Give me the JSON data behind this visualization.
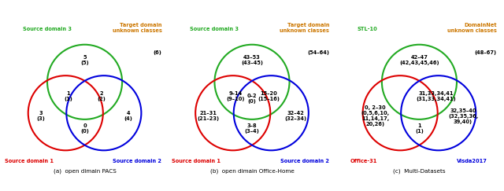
{
  "diagrams": [
    {
      "title": "(a)  open dimain PACS",
      "circle1_label": "Source domain 1",
      "circle1_color": "#dd0000",
      "circle2_label": "Source domain 2",
      "circle2_color": "#0000dd",
      "circle3_label": "Source domain 3",
      "circle3_color": "#22aa22",
      "target_label": "Target domain\nunknown classes",
      "target_color": "#cc7700",
      "target_value": "(6)",
      "regions": {
        "only1": "3\n(3)",
        "only2": "4\n(4)",
        "only3": "5\n(5)",
        "inter12": "0\n(0)",
        "inter13": "1\n(1)",
        "inter23": "2\n(2)",
        "inter123": ""
      }
    },
    {
      "title": "(b)  open dimain Office-Home",
      "circle1_label": "Source domain 1",
      "circle1_color": "#dd0000",
      "circle2_label": "Source domain 2",
      "circle2_color": "#0000dd",
      "circle3_label": "Source domain 3",
      "circle3_color": "#22aa22",
      "target_label": "Target domain\nunknown classes",
      "target_color": "#cc7700",
      "target_value": "(54–64)",
      "regions": {
        "only1": "21–31\n(21–23)",
        "only2": "32–42\n(32–34)",
        "only3": "43–53\n(43–45)",
        "inter12": "3–8\n(3–4)",
        "inter13": "9–14\n(9–10)",
        "inter23": "15–20\n(15–16)",
        "inter123": "0–2\n(0)"
      }
    },
    {
      "title": "(c)  Multi-Datasets",
      "circle1_label": "Office-31",
      "circle1_color": "#dd0000",
      "circle2_label": "Visda2017",
      "circle2_color": "#0000dd",
      "circle3_label": "STL-10",
      "circle3_color": "#22aa22",
      "target_label": "DomainNet\nunknown classes",
      "target_color": "#cc7700",
      "target_value": "(48–67)",
      "regions": {
        "only1": "0, 2–30\n(0,5,6,10,\n11,14,17,\n20,26)",
        "only2": "32,35–40\n(32,35,36,\n39,40)",
        "only3": "42–47\n(42,43,45,46)",
        "inter12": "1\n(1)",
        "inter13": "",
        "inter23": "31,33,34,41\n(31,33,34,41)",
        "inter123": ""
      }
    }
  ],
  "fig_width": 6.4,
  "fig_height": 2.43,
  "dpi": 100
}
